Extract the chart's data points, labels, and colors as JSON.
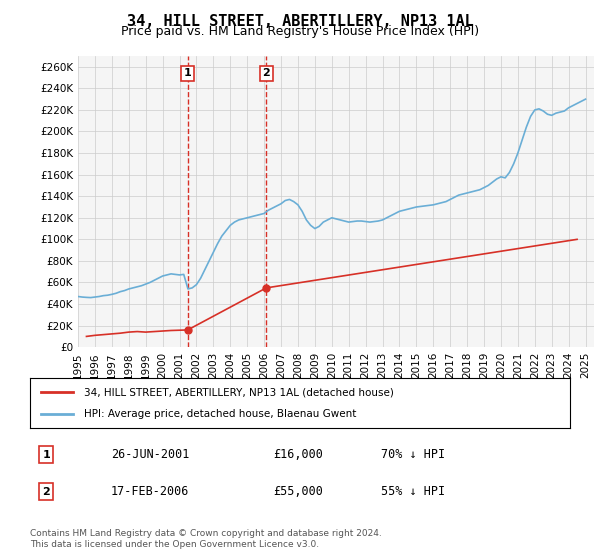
{
  "title": "34, HILL STREET, ABERTILLERY, NP13 1AL",
  "subtitle": "Price paid vs. HM Land Registry's House Price Index (HPI)",
  "ylabel_ticks": [
    0,
    20000,
    40000,
    60000,
    80000,
    100000,
    120000,
    140000,
    160000,
    180000,
    200000,
    220000,
    240000,
    260000
  ],
  "ylim": [
    0,
    270000
  ],
  "xlim_start": 1995.0,
  "xlim_end": 2025.5,
  "hpi_color": "#6aaed6",
  "price_color": "#d73027",
  "vline_color": "#d73027",
  "grid_color": "#cccccc",
  "bg_color": "#ffffff",
  "plot_bg_color": "#f5f5f5",
  "transaction1_x": 2001.484,
  "transaction1_y": 16000,
  "transaction1_label": "1",
  "transaction1_date": "26-JUN-2001",
  "transaction1_price": "£16,000",
  "transaction1_hpi": "70% ↓ HPI",
  "transaction2_x": 2006.13,
  "transaction2_y": 55000,
  "transaction2_label": "2",
  "transaction2_date": "17-FEB-2006",
  "transaction2_price": "£55,000",
  "transaction2_hpi": "55% ↓ HPI",
  "legend_label_red": "34, HILL STREET, ABERTILLERY, NP13 1AL (detached house)",
  "legend_label_blue": "HPI: Average price, detached house, Blaenau Gwent",
  "footer_line1": "Contains HM Land Registry data © Crown copyright and database right 2024.",
  "footer_line2": "This data is licensed under the Open Government Licence v3.0.",
  "hpi_x": [
    1995.0,
    1995.25,
    1995.5,
    1995.75,
    1996.0,
    1996.25,
    1996.5,
    1996.75,
    1997.0,
    1997.25,
    1997.5,
    1997.75,
    1998.0,
    1998.25,
    1998.5,
    1998.75,
    1999.0,
    1999.25,
    1999.5,
    1999.75,
    2000.0,
    2000.25,
    2000.5,
    2000.75,
    2001.0,
    2001.25,
    2001.5,
    2001.75,
    2002.0,
    2002.25,
    2002.5,
    2002.75,
    2003.0,
    2003.25,
    2003.5,
    2003.75,
    2004.0,
    2004.25,
    2004.5,
    2004.75,
    2005.0,
    2005.25,
    2005.5,
    2005.75,
    2006.0,
    2006.25,
    2006.5,
    2006.75,
    2007.0,
    2007.25,
    2007.5,
    2007.75,
    2008.0,
    2008.25,
    2008.5,
    2008.75,
    2009.0,
    2009.25,
    2009.5,
    2009.75,
    2010.0,
    2010.25,
    2010.5,
    2010.75,
    2011.0,
    2011.25,
    2011.5,
    2011.75,
    2012.0,
    2012.25,
    2012.5,
    2012.75,
    2013.0,
    2013.25,
    2013.5,
    2013.75,
    2014.0,
    2014.25,
    2014.5,
    2014.75,
    2015.0,
    2015.25,
    2015.5,
    2015.75,
    2016.0,
    2016.25,
    2016.5,
    2016.75,
    2017.0,
    2017.25,
    2017.5,
    2017.75,
    2018.0,
    2018.25,
    2018.5,
    2018.75,
    2019.0,
    2019.25,
    2019.5,
    2019.75,
    2020.0,
    2020.25,
    2020.5,
    2020.75,
    2021.0,
    2021.25,
    2021.5,
    2021.75,
    2022.0,
    2022.25,
    2022.5,
    2022.75,
    2023.0,
    2023.25,
    2023.5,
    2023.75,
    2024.0,
    2024.25,
    2024.5,
    2024.75,
    2025.0
  ],
  "hpi_y": [
    47000,
    46500,
    46200,
    46000,
    46500,
    47000,
    47800,
    48200,
    49000,
    50000,
    51500,
    52500,
    54000,
    55000,
    56000,
    57000,
    58500,
    60000,
    62000,
    64000,
    66000,
    67000,
    68000,
    67500,
    67000,
    67500,
    54000,
    55000,
    58000,
    64000,
    72000,
    80000,
    88000,
    96000,
    103000,
    108000,
    113000,
    116000,
    118000,
    119000,
    120000,
    121000,
    122000,
    123000,
    124000,
    127000,
    129000,
    131000,
    133000,
    136000,
    137000,
    135000,
    132000,
    126000,
    118000,
    113000,
    110000,
    112000,
    116000,
    118000,
    120000,
    119000,
    118000,
    117000,
    116000,
    116500,
    117000,
    117000,
    116500,
    116000,
    116500,
    117000,
    118000,
    120000,
    122000,
    124000,
    126000,
    127000,
    128000,
    129000,
    130000,
    130500,
    131000,
    131500,
    132000,
    133000,
    134000,
    135000,
    137000,
    139000,
    141000,
    142000,
    143000,
    144000,
    145000,
    146000,
    148000,
    150000,
    153000,
    156000,
    158000,
    157000,
    162000,
    170000,
    180000,
    192000,
    204000,
    214000,
    220000,
    221000,
    219000,
    216000,
    215000,
    217000,
    218000,
    219000,
    222000,
    224000,
    226000,
    228000,
    230000
  ],
  "price_x": [
    1995.5,
    1996.0,
    1996.75,
    1997.5,
    1998.0,
    1998.5,
    1999.0,
    1999.5,
    2000.0,
    2000.5,
    2001.484,
    2006.13,
    2024.5
  ],
  "price_y": [
    10000,
    11000,
    12000,
    13000,
    14000,
    14500,
    14000,
    14500,
    15000,
    15500,
    16000,
    55000,
    100000
  ]
}
